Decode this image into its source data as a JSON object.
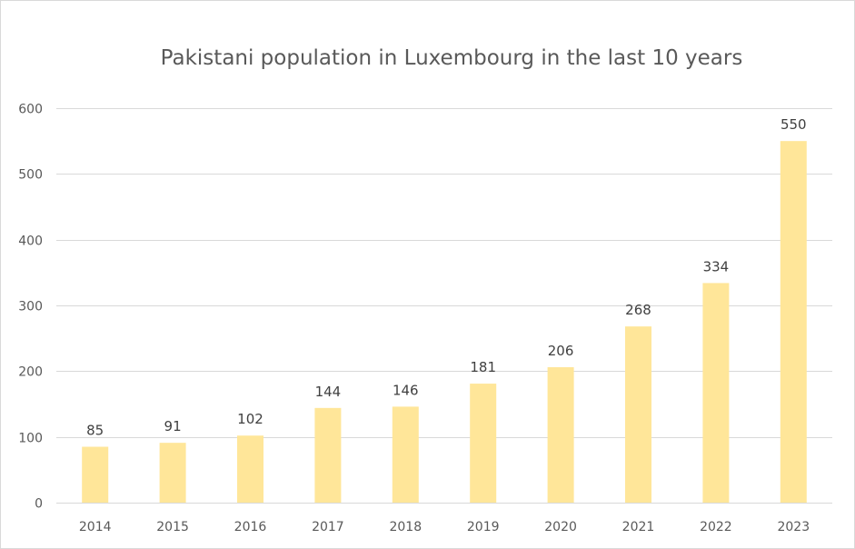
{
  "chart_data": {
    "type": "bar",
    "title": "Pakistani population in Luxembourg in the last 10 years",
    "xlabel": "",
    "ylabel": "",
    "categories": [
      "2014",
      "2015",
      "2016",
      "2017",
      "2018",
      "2019",
      "2020",
      "2021",
      "2022",
      "2023"
    ],
    "values": [
      85,
      91,
      102,
      144,
      146,
      181,
      206,
      268,
      334,
      550
    ],
    "ylim": [
      0,
      600
    ],
    "yticks": [
      0,
      100,
      200,
      300,
      400,
      500,
      600
    ],
    "grid": true,
    "legend": "none",
    "data_labels": true,
    "bar_color": "#ffe699"
  }
}
